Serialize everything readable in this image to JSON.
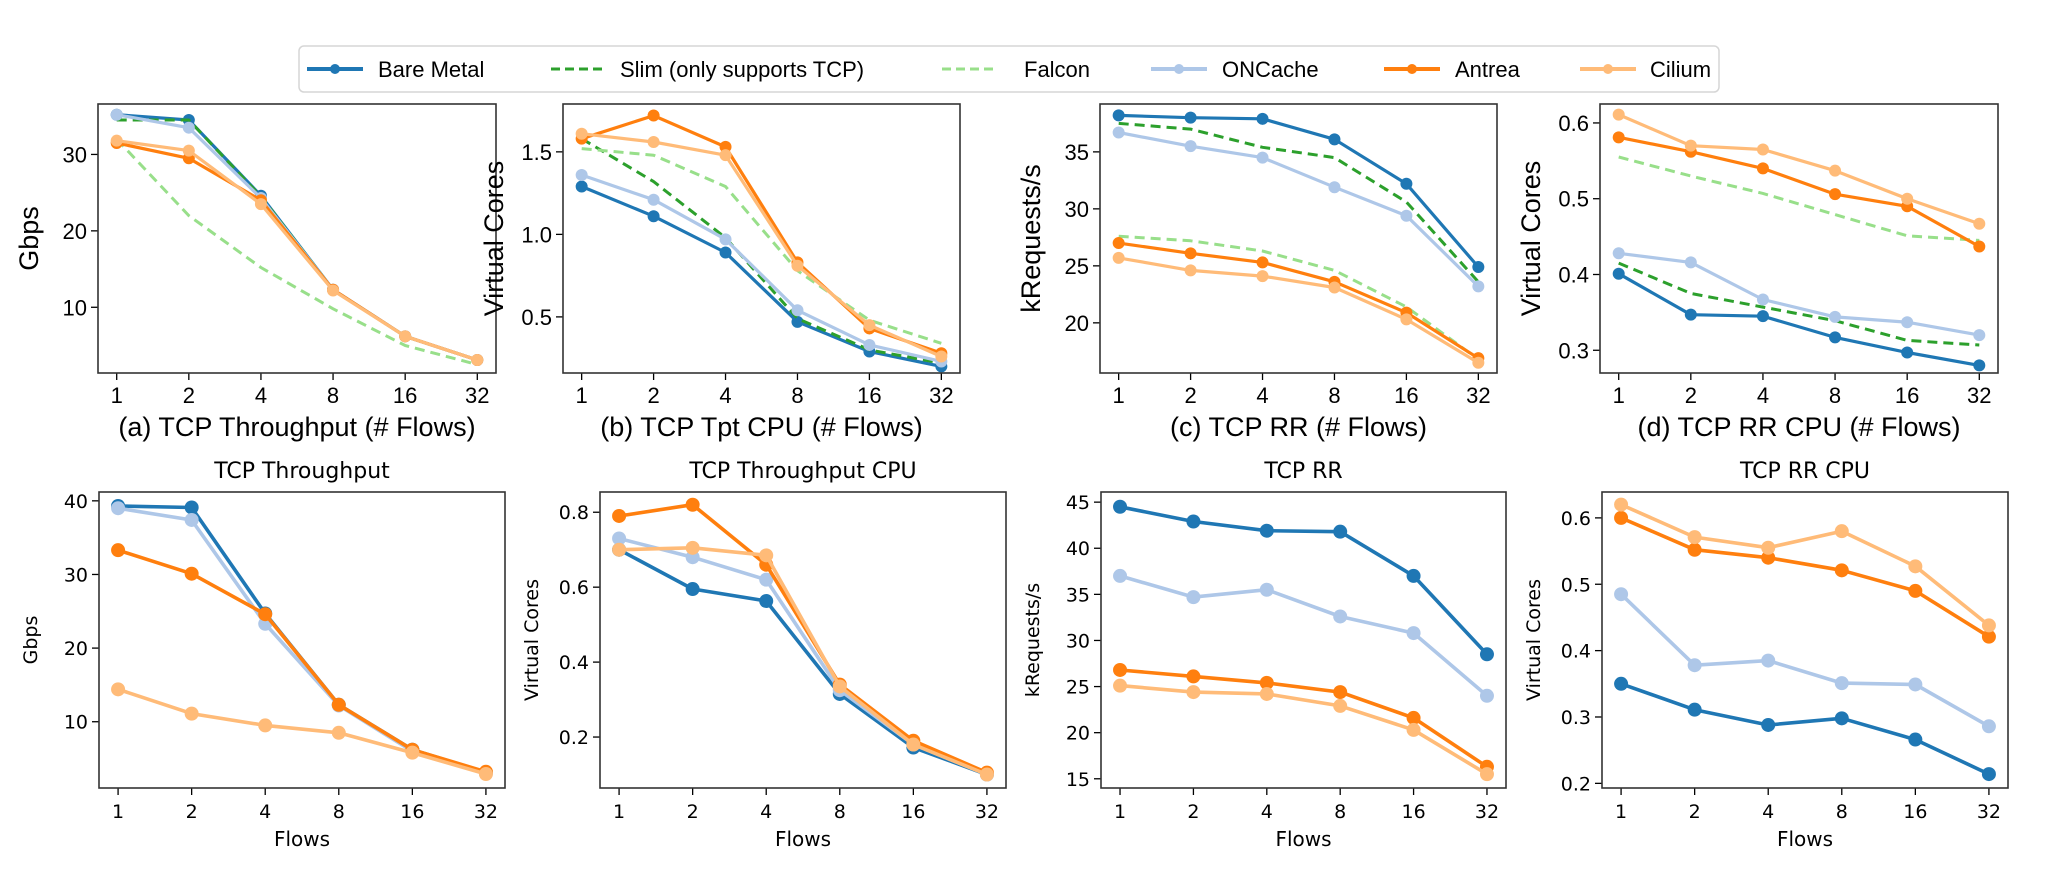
{
  "legend": {
    "placement": "top-center",
    "entries": [
      {
        "name": "Bare Metal",
        "color": "#1f77b4",
        "style": "solid-marker"
      },
      {
        "name": "Slim (only supports TCP)",
        "color": "#2ca02c",
        "style": "dashed"
      },
      {
        "name": "Falcon",
        "color": "#98df8a",
        "style": "dashed"
      },
      {
        "name": "ONCache",
        "color": "#aec7e8",
        "style": "solid-marker"
      },
      {
        "name": "Antrea",
        "color": "#ff7f0e",
        "style": "solid-marker"
      },
      {
        "name": "Cilium",
        "color": "#ffbb78",
        "style": "solid-marker"
      }
    ]
  },
  "chart_data": [
    {
      "type": "line",
      "title": "",
      "xlabel": "(a) TCP Throughput (# Flows)",
      "ylabel": "Gbps",
      "x": [
        1,
        2,
        4,
        8,
        16,
        32
      ],
      "xscale": "log2",
      "ylim": [
        1.4,
        36.6
      ],
      "yticks": [
        10,
        20,
        30
      ],
      "grid": false,
      "series": [
        {
          "name": "Bare Metal",
          "values": [
            35.2,
            34.5,
            24.6,
            12.3,
            6.2,
            3.1
          ]
        },
        {
          "name": "Slim (only supports TCP)",
          "values": [
            34.5,
            34.5,
            24.5,
            12.3,
            6.2,
            3.1
          ]
        },
        {
          "name": "Falcon",
          "values": [
            32.0,
            22.0,
            15.2,
            9.8,
            5.0,
            2.5
          ]
        },
        {
          "name": "ONCache",
          "values": [
            35.2,
            33.5,
            24.3,
            12.3,
            6.2,
            3.1
          ]
        },
        {
          "name": "Antrea",
          "values": [
            31.5,
            29.5,
            24.0,
            12.3,
            6.2,
            3.1
          ]
        },
        {
          "name": "Cilium",
          "values": [
            31.8,
            30.5,
            23.5,
            12.2,
            6.2,
            3.1
          ]
        }
      ]
    },
    {
      "type": "line",
      "title": "",
      "xlabel": "(b) TCP Tpt CPU (# Flows)",
      "ylabel": "Virtual Cores",
      "x": [
        1,
        2,
        4,
        8,
        16,
        32
      ],
      "xscale": "log2",
      "ylim": [
        0.16,
        1.79
      ],
      "yticks": [
        0.5,
        1.0,
        1.5
      ],
      "grid": false,
      "series": [
        {
          "name": "Bare Metal",
          "values": [
            1.29,
            1.11,
            0.89,
            0.47,
            0.29,
            0.2
          ]
        },
        {
          "name": "Slim (only supports TCP)",
          "values": [
            1.58,
            1.32,
            0.98,
            0.49,
            0.3,
            0.22
          ]
        },
        {
          "name": "Falcon",
          "values": [
            1.52,
            1.48,
            1.29,
            0.78,
            0.48,
            0.34
          ]
        },
        {
          "name": "ONCache",
          "values": [
            1.36,
            1.21,
            0.97,
            0.54,
            0.33,
            0.23
          ]
        },
        {
          "name": "Antrea",
          "values": [
            1.58,
            1.72,
            1.53,
            0.83,
            0.43,
            0.28
          ]
        },
        {
          "name": "Cilium",
          "values": [
            1.61,
            1.56,
            1.48,
            0.81,
            0.45,
            0.26
          ]
        }
      ]
    },
    {
      "type": "line",
      "title": "",
      "xlabel": "(c) TCP RR (# Flows)",
      "ylabel": "kRequests/s",
      "x": [
        1,
        2,
        4,
        8,
        16,
        32
      ],
      "xscale": "log2",
      "ylim": [
        15.6,
        39.2
      ],
      "yticks": [
        20,
        25,
        30,
        35
      ],
      "grid": false,
      "series": [
        {
          "name": "Bare Metal",
          "values": [
            38.2,
            38.0,
            37.9,
            36.1,
            32.2,
            24.9
          ]
        },
        {
          "name": "Slim (only supports TCP)",
          "values": [
            37.5,
            37.0,
            35.4,
            34.5,
            30.6,
            23.6
          ]
        },
        {
          "name": "Falcon",
          "values": [
            27.6,
            27.2,
            26.3,
            24.6,
            21.4,
            16.8
          ]
        },
        {
          "name": "ONCache",
          "values": [
            36.7,
            35.5,
            34.5,
            31.9,
            29.4,
            23.2
          ]
        },
        {
          "name": "Antrea",
          "values": [
            27.0,
            26.1,
            25.3,
            23.6,
            20.9,
            16.9
          ]
        },
        {
          "name": "Cilium",
          "values": [
            25.7,
            24.6,
            24.1,
            23.1,
            20.3,
            16.5
          ]
        }
      ]
    },
    {
      "type": "line",
      "title": "",
      "xlabel": "(d) TCP RR CPU (# Flows)",
      "ylabel": "Virtual Cores",
      "x": [
        1,
        2,
        4,
        8,
        16,
        32
      ],
      "xscale": "log2",
      "ylim": [
        0.27,
        0.625
      ],
      "yticks": [
        0.3,
        0.4,
        0.5,
        0.6
      ],
      "grid": false,
      "series": [
        {
          "name": "Bare Metal",
          "values": [
            0.401,
            0.347,
            0.345,
            0.317,
            0.297,
            0.28
          ]
        },
        {
          "name": "Slim (only supports TCP)",
          "values": [
            0.415,
            0.375,
            0.357,
            0.339,
            0.313,
            0.307
          ]
        },
        {
          "name": "Falcon",
          "values": [
            0.555,
            0.53,
            0.507,
            0.479,
            0.451,
            0.445
          ]
        },
        {
          "name": "ONCache",
          "values": [
            0.428,
            0.416,
            0.367,
            0.344,
            0.337,
            0.32
          ]
        },
        {
          "name": "Antrea",
          "values": [
            0.581,
            0.562,
            0.54,
            0.506,
            0.49,
            0.437
          ]
        },
        {
          "name": "Cilium",
          "values": [
            0.611,
            0.57,
            0.565,
            0.537,
            0.5,
            0.467
          ]
        }
      ]
    },
    {
      "type": "line",
      "title": "TCP Throughput",
      "xlabel": "Flows",
      "ylabel": "Gbps",
      "x": [
        1,
        2,
        4,
        8,
        16,
        32
      ],
      "xscale": "log2",
      "ylim": [
        1.0,
        41.2
      ],
      "yticks": [
        10,
        20,
        30,
        40
      ],
      "grid": false,
      "series": [
        {
          "name": "Bare Metal",
          "values": [
            39.3,
            39.1,
            24.7,
            12.3,
            6.2,
            3.1
          ]
        },
        {
          "name": "ONCache",
          "values": [
            39.0,
            37.4,
            23.3,
            12.2,
            6.0,
            3.0
          ]
        },
        {
          "name": "Antrea",
          "values": [
            33.3,
            30.1,
            24.6,
            12.3,
            6.2,
            3.2
          ]
        },
        {
          "name": "Cilium",
          "values": [
            14.4,
            11.1,
            9.5,
            8.5,
            5.8,
            2.9
          ]
        }
      ]
    },
    {
      "type": "line",
      "title": "TCP Throughput CPU",
      "xlabel": "Flows",
      "ylabel": "Virtual Cores",
      "x": [
        1,
        2,
        4,
        8,
        16,
        32
      ],
      "xscale": "log2",
      "ylim": [
        0.064,
        0.854
      ],
      "yticks": [
        0.2,
        0.4,
        0.6,
        0.8
      ],
      "grid": false,
      "series": [
        {
          "name": "Bare Metal",
          "values": [
            0.7,
            0.595,
            0.563,
            0.315,
            0.172,
            0.1
          ]
        },
        {
          "name": "ONCache",
          "values": [
            0.73,
            0.68,
            0.62,
            0.325,
            0.18,
            0.1
          ]
        },
        {
          "name": "Antrea",
          "values": [
            0.79,
            0.82,
            0.66,
            0.34,
            0.19,
            0.105
          ]
        },
        {
          "name": "Cilium",
          "values": [
            0.7,
            0.705,
            0.685,
            0.335,
            0.18,
            0.1
          ]
        }
      ]
    },
    {
      "type": "line",
      "title": "TCP RR",
      "xlabel": "Flows",
      "ylabel": "kRequests/s",
      "x": [
        1,
        2,
        4,
        8,
        16,
        32
      ],
      "xscale": "log2",
      "ylim": [
        14.0,
        46.1
      ],
      "yticks": [
        15,
        20,
        25,
        30,
        35,
        40,
        45
      ],
      "grid": false,
      "series": [
        {
          "name": "Bare Metal",
          "values": [
            44.5,
            42.9,
            41.9,
            41.8,
            37.0,
            28.5
          ]
        },
        {
          "name": "ONCache",
          "values": [
            37.0,
            34.7,
            35.5,
            32.6,
            30.8,
            24.0
          ]
        },
        {
          "name": "Antrea",
          "values": [
            26.8,
            26.1,
            25.4,
            24.4,
            21.6,
            16.3
          ]
        },
        {
          "name": "Cilium",
          "values": [
            25.1,
            24.4,
            24.2,
            22.9,
            20.3,
            15.5
          ]
        }
      ]
    },
    {
      "type": "line",
      "title": "TCP RR CPU",
      "xlabel": "Flows",
      "ylabel": "Virtual Cores",
      "x": [
        1,
        2,
        4,
        8,
        16,
        32
      ],
      "xscale": "log2",
      "ylim": [
        0.193,
        0.639
      ],
      "yticks": [
        0.2,
        0.3,
        0.4,
        0.5,
        0.6
      ],
      "grid": false,
      "series": [
        {
          "name": "Bare Metal",
          "values": [
            0.35,
            0.311,
            0.288,
            0.298,
            0.266,
            0.214
          ]
        },
        {
          "name": "ONCache",
          "values": [
            0.485,
            0.378,
            0.385,
            0.351,
            0.349,
            0.286
          ]
        },
        {
          "name": "Antrea",
          "values": [
            0.6,
            0.552,
            0.54,
            0.521,
            0.49,
            0.421
          ]
        },
        {
          "name": "Cilium",
          "values": [
            0.62,
            0.571,
            0.555,
            0.58,
            0.527,
            0.438
          ]
        }
      ]
    }
  ]
}
